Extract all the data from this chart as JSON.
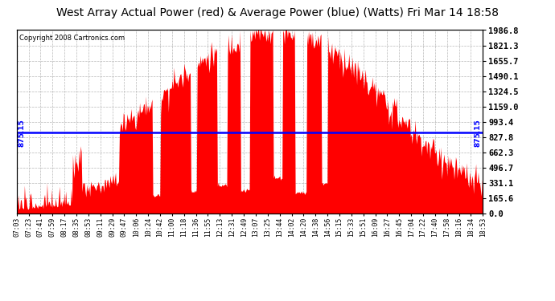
{
  "title": "West Array Actual Power (red) & Average Power (blue) (Watts) Fri Mar 14 18:58",
  "copyright": "Copyright 2008 Cartronics.com",
  "average_power": 875.15,
  "y_max": 1986.8,
  "y_ticks": [
    0.0,
    165.6,
    331.1,
    496.7,
    662.3,
    827.8,
    993.4,
    1159.0,
    1324.5,
    1490.1,
    1655.7,
    1821.3,
    1986.8
  ],
  "x_labels": [
    "07:03",
    "07:23",
    "07:41",
    "07:59",
    "08:17",
    "08:35",
    "08:53",
    "09:11",
    "09:29",
    "09:47",
    "10:06",
    "10:24",
    "10:42",
    "11:00",
    "11:18",
    "11:36",
    "11:55",
    "12:13",
    "12:31",
    "12:49",
    "13:07",
    "13:25",
    "13:44",
    "14:02",
    "14:20",
    "14:38",
    "14:56",
    "15:15",
    "15:33",
    "15:51",
    "16:09",
    "16:27",
    "16:45",
    "17:04",
    "17:22",
    "17:40",
    "17:58",
    "18:16",
    "18:34",
    "18:53"
  ],
  "bg_color": "#ffffff",
  "fill_color": "#ff0000",
  "line_color": "#0000ff",
  "grid_color": "#b0b0b0",
  "title_fontsize": 10,
  "avg_label": "875.15"
}
